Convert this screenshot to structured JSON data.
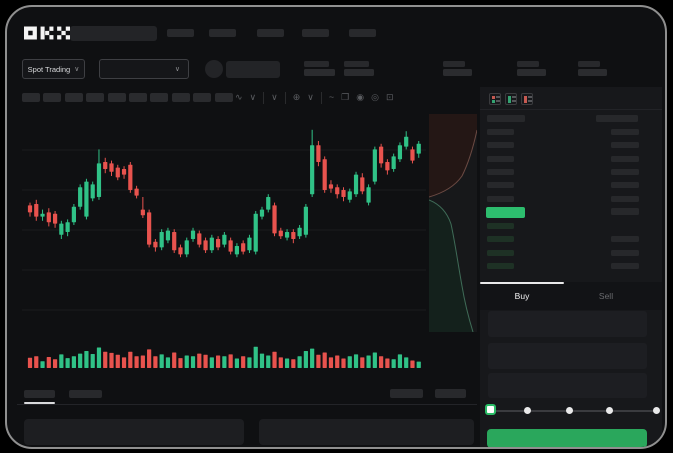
{
  "brand": {
    "name": "OKX"
  },
  "subheader": {
    "market_selector_label": "Spot Trading",
    "chevron_glyph": "∨"
  },
  "chart_toolbar": {
    "icons": [
      {
        "name": "candle-style-icon",
        "glyph": "∿"
      },
      {
        "name": "chevron-down-icon",
        "glyph": "∨"
      },
      {
        "name": "sep"
      },
      {
        "name": "indicator-chevron-icon",
        "glyph": "∨"
      },
      {
        "name": "sep"
      },
      {
        "name": "compare-icon",
        "glyph": "⊕"
      },
      {
        "name": "chevron-down-icon",
        "glyph": "∨"
      },
      {
        "name": "sep"
      },
      {
        "name": "line-tool-icon",
        "glyph": "~"
      },
      {
        "name": "layers-icon",
        "glyph": "❐"
      },
      {
        "name": "snapshot-icon",
        "glyph": "◉"
      },
      {
        "name": "settings-icon",
        "glyph": "◎"
      },
      {
        "name": "fullscreen-icon",
        "glyph": "⊡"
      }
    ]
  },
  "orderbook": {
    "view_modes": [
      "combined-book",
      "bids-only",
      "asks-only"
    ],
    "ask_rows": [
      {
        "amount": true
      },
      {
        "amount": true
      },
      {
        "amount": true
      },
      {
        "amount": true
      },
      {
        "amount": true
      },
      {
        "amount": true
      }
    ],
    "last_price_row": {
      "highlight": true,
      "amount": true
    },
    "bid_rows": [
      {
        "amount": false
      },
      {
        "amount": true
      },
      {
        "amount": true
      },
      {
        "amount": true
      }
    ]
  },
  "trade_panel": {
    "tabs": [
      {
        "label": "Buy",
        "active": true
      },
      {
        "label": "Sell",
        "active": false
      }
    ],
    "slider": {
      "value_percent": 0,
      "stop_count": 5
    },
    "submit_label": ""
  },
  "colors": {
    "up": "#30c287",
    "down": "#e8534e",
    "last_price_highlight": "#2dbd6e",
    "buy_button": "#2aa75c",
    "depth_ask_fill": "#241715",
    "depth_ask_line": "#6b4a43",
    "depth_bid_fill": "#14211c",
    "depth_bid_line": "#3f6b57"
  },
  "chart_data": {
    "type": "candlestick",
    "note_axes": "no visible price/time labels in screenshot",
    "ylim": [
      0,
      100
    ],
    "grid": true,
    "candles": [
      [
        39,
        41,
        31,
        34
      ],
      [
        40,
        43,
        28,
        31
      ],
      [
        31,
        36,
        28,
        33
      ],
      [
        34,
        37,
        24,
        27
      ],
      [
        33,
        35,
        23,
        26
      ],
      [
        18,
        28,
        15,
        26
      ],
      [
        20,
        29,
        17,
        27
      ],
      [
        27,
        40,
        25,
        38
      ],
      [
        38,
        54,
        36,
        52
      ],
      [
        31,
        58,
        29,
        56
      ],
      [
        44,
        56,
        42,
        54
      ],
      [
        45,
        79,
        43,
        69
      ],
      [
        70,
        73,
        62,
        65
      ],
      [
        69,
        71,
        60,
        63
      ],
      [
        66,
        68,
        57,
        59
      ],
      [
        65,
        67,
        58,
        61
      ],
      [
        68,
        70,
        48,
        50
      ],
      [
        51,
        53,
        44,
        46
      ],
      [
        36,
        45,
        30,
        32
      ],
      [
        34,
        36,
        9,
        11
      ],
      [
        13,
        15,
        6,
        9
      ],
      [
        9,
        22,
        7,
        20
      ],
      [
        14,
        23,
        12,
        21
      ],
      [
        20,
        22,
        5,
        7
      ],
      [
        9,
        11,
        2,
        4
      ],
      [
        4,
        16,
        2,
        14
      ],
      [
        15,
        23,
        13,
        21
      ],
      [
        19,
        21,
        9,
        11
      ],
      [
        14,
        16,
        5,
        7
      ],
      [
        7,
        18,
        5,
        16
      ],
      [
        15,
        17,
        7,
        9
      ],
      [
        11,
        20,
        9,
        18
      ],
      [
        14,
        16,
        4,
        6
      ],
      [
        4,
        12,
        2,
        10
      ],
      [
        12,
        14,
        4,
        6
      ],
      [
        7,
        18,
        5,
        16
      ],
      [
        6,
        35,
        4,
        33
      ],
      [
        31,
        38,
        29,
        36
      ],
      [
        36,
        47,
        34,
        45
      ],
      [
        39,
        41,
        17,
        19
      ],
      [
        21,
        23,
        15,
        17
      ],
      [
        16,
        22,
        14,
        20
      ],
      [
        20,
        22,
        12,
        15
      ],
      [
        17,
        25,
        15,
        23
      ],
      [
        18,
        40,
        16,
        38
      ],
      [
        47,
        93,
        45,
        82
      ],
      [
        82,
        85,
        67,
        70
      ],
      [
        72,
        74,
        48,
        50
      ],
      [
        54,
        57,
        48,
        51
      ],
      [
        52,
        54,
        44,
        47
      ],
      [
        50,
        52,
        42,
        45
      ],
      [
        43,
        51,
        41,
        49
      ],
      [
        47,
        63,
        45,
        61
      ],
      [
        59,
        62,
        47,
        49
      ],
      [
        41,
        54,
        39,
        52
      ],
      [
        56,
        81,
        54,
        79
      ],
      [
        81,
        83,
        66,
        69
      ],
      [
        70,
        72,
        61,
        64
      ],
      [
        65,
        76,
        63,
        74
      ],
      [
        72,
        84,
        70,
        82
      ],
      [
        81,
        92,
        79,
        88
      ],
      [
        79,
        81,
        69,
        71
      ],
      [
        76,
        85,
        73,
        83
      ]
    ],
    "volumes": [
      38,
      46,
      20,
      42,
      30,
      56,
      36,
      46,
      60,
      74,
      58,
      92,
      70,
      64,
      54,
      40,
      70,
      46,
      50,
      82,
      46,
      56,
      40,
      66,
      36,
      50,
      46,
      60,
      54,
      40,
      50,
      46,
      56,
      34,
      46,
      40,
      96,
      60,
      50,
      70,
      40,
      34,
      30,
      46,
      74,
      86,
      54,
      66,
      40,
      50,
      34,
      46,
      56,
      40,
      50,
      66,
      46,
      34,
      30,
      56,
      40,
      24,
      18
    ]
  }
}
